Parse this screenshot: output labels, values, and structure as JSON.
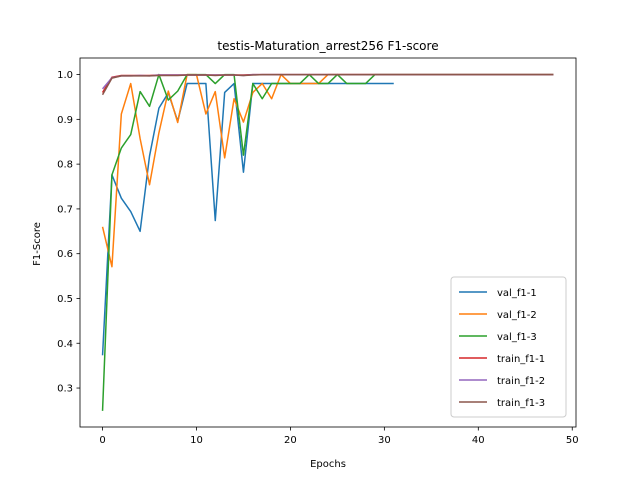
{
  "chart_data": {
    "type": "line",
    "title": "testis-Maturation_arrest256 F1-score",
    "xlabel": "Epochs",
    "ylabel": "F1-Score",
    "xlim": [
      -2.4,
      50.4
    ],
    "ylim": [
      0.213,
      1.037
    ],
    "xticks": [
      0,
      10,
      20,
      30,
      40,
      50
    ],
    "yticks": [
      0.3,
      0.4,
      0.5,
      0.6,
      0.7,
      0.8,
      0.9,
      1.0
    ],
    "ytick_labels": [
      "0.3",
      "0.4",
      "0.5",
      "0.6",
      "0.7",
      "0.8",
      "0.9",
      "1.0"
    ],
    "grid": false,
    "legend_position": "lower-right",
    "series": [
      {
        "name": "val_f1-1",
        "color": "#1f77b4",
        "x": [
          0,
          1,
          2,
          3,
          4,
          5,
          6,
          7,
          8,
          9,
          10,
          11,
          12,
          13,
          14,
          15,
          16,
          17,
          18,
          19,
          20,
          21,
          22,
          23,
          24,
          25,
          26,
          27,
          28,
          29,
          30,
          31
        ],
        "values": [
          0.373,
          0.776,
          0.724,
          0.694,
          0.65,
          0.818,
          0.925,
          0.959,
          0.896,
          0.98,
          0.98,
          0.98,
          0.674,
          0.96,
          0.98,
          0.782,
          0.98,
          0.98,
          0.98,
          0.98,
          0.98,
          0.98,
          0.98,
          0.98,
          0.98,
          0.98,
          0.98,
          0.98,
          0.98,
          0.98,
          0.98,
          0.98
        ]
      },
      {
        "name": "val_f1-2",
        "color": "#ff7f0e",
        "x": [
          0,
          1,
          2,
          3,
          4,
          5,
          6,
          7,
          8,
          9,
          10,
          11,
          12,
          13,
          14,
          15,
          16,
          17,
          18,
          19,
          20,
          21,
          22,
          23,
          24,
          25,
          26,
          27,
          28,
          29,
          30,
          31,
          32,
          33,
          34,
          35,
          36,
          37,
          38,
          39,
          40,
          41,
          42,
          43,
          44,
          45,
          46,
          47,
          48
        ],
        "values": [
          0.66,
          0.571,
          0.912,
          0.98,
          0.857,
          0.754,
          0.87,
          0.963,
          0.893,
          1.0,
          1.0,
          0.912,
          0.962,
          0.814,
          0.946,
          0.894,
          0.96,
          0.98,
          0.946,
          1.0,
          0.98,
          0.98,
          0.98,
          0.98,
          1.0,
          1.0,
          1.0,
          1.0,
          1.0,
          1.0,
          1.0,
          1.0,
          1.0,
          1.0,
          1.0,
          1.0,
          1.0,
          1.0,
          1.0,
          1.0,
          1.0,
          1.0,
          1.0,
          1.0,
          1.0,
          1.0,
          1.0,
          1.0,
          1.0
        ]
      },
      {
        "name": "val_f1-3",
        "color": "#2ca02c",
        "x": [
          0,
          1,
          2,
          3,
          4,
          5,
          6,
          7,
          8,
          9,
          10,
          11,
          12,
          13,
          14,
          15,
          16,
          17,
          18,
          19,
          20,
          21,
          22,
          23,
          24,
          25,
          26,
          27,
          28,
          29,
          30,
          31,
          32,
          33,
          34,
          35,
          36,
          37,
          38,
          39,
          40,
          41,
          42,
          43,
          44,
          45,
          46,
          47,
          48
        ],
        "values": [
          0.249,
          0.776,
          0.836,
          0.866,
          0.962,
          0.929,
          1.0,
          0.943,
          0.963,
          1.0,
          1.0,
          1.0,
          0.98,
          1.0,
          1.0,
          0.82,
          0.98,
          0.946,
          0.98,
          0.98,
          0.98,
          0.98,
          1.0,
          0.98,
          0.98,
          1.0,
          0.98,
          0.98,
          0.98,
          1.0,
          1.0,
          1.0,
          1.0,
          1.0,
          1.0,
          1.0,
          1.0,
          1.0,
          1.0,
          1.0,
          1.0,
          1.0,
          1.0,
          1.0,
          1.0,
          1.0,
          1.0,
          1.0,
          1.0
        ]
      },
      {
        "name": "train_f1-1",
        "color": "#d62728",
        "x": [
          0,
          1,
          2,
          3,
          4,
          5,
          6,
          7,
          8,
          9,
          10,
          11,
          12,
          13,
          14,
          15,
          16,
          17,
          18,
          19,
          20,
          21,
          22,
          23,
          24,
          25,
          26,
          27,
          28,
          29,
          30,
          31,
          32,
          33,
          34,
          35,
          36,
          37,
          38,
          39,
          40,
          41,
          42,
          43,
          44,
          45,
          46,
          47,
          48
        ],
        "values": [
          0.96,
          0.994,
          0.998,
          0.998,
          0.998,
          0.998,
          0.999,
          0.999,
          0.999,
          0.999,
          0.999,
          0.999,
          0.999,
          0.999,
          0.999,
          0.999,
          1.0,
          1.0,
          1.0,
          1.0,
          1.0,
          1.0,
          1.0,
          1.0,
          1.0,
          1.0,
          1.0,
          1.0,
          1.0,
          1.0,
          1.0,
          1.0,
          1.0,
          1.0,
          1.0,
          1.0,
          1.0,
          1.0,
          1.0,
          1.0,
          1.0,
          1.0,
          1.0,
          1.0,
          1.0,
          1.0,
          1.0,
          1.0,
          1.0
        ]
      },
      {
        "name": "train_f1-2",
        "color": "#9467bd",
        "x": [
          0,
          1,
          2,
          3,
          4,
          5,
          6,
          7,
          8,
          9,
          10,
          11,
          12,
          13,
          14,
          15,
          16,
          17,
          18,
          19,
          20,
          21,
          22,
          23,
          24,
          25,
          26,
          27,
          28,
          29,
          30,
          31,
          32,
          33,
          34,
          35,
          36,
          37,
          38,
          39,
          40,
          41,
          42,
          43,
          44,
          45,
          46,
          47,
          48
        ],
        "values": [
          0.968,
          0.993,
          0.997,
          0.997,
          0.998,
          0.997,
          0.999,
          0.999,
          0.999,
          0.999,
          0.999,
          0.999,
          0.999,
          0.999,
          0.999,
          0.998,
          1.0,
          1.0,
          1.0,
          1.0,
          1.0,
          1.0,
          1.0,
          1.0,
          1.0,
          1.0,
          1.0,
          1.0,
          1.0,
          1.0,
          1.0,
          1.0,
          1.0,
          1.0,
          1.0,
          1.0,
          1.0,
          1.0,
          1.0,
          1.0,
          1.0,
          1.0,
          1.0,
          1.0,
          1.0,
          1.0,
          1.0,
          1.0,
          1.0
        ]
      },
      {
        "name": "train_f1-3",
        "color": "#8c564b",
        "x": [
          0,
          1,
          2,
          3,
          4,
          5,
          6,
          7,
          8,
          9,
          10,
          11,
          12,
          13,
          14,
          15,
          16,
          17,
          18,
          19,
          20,
          21,
          22,
          23,
          24,
          25,
          26,
          27,
          28,
          29,
          30,
          31,
          32,
          33,
          34,
          35,
          36,
          37,
          38,
          39,
          40,
          41,
          42,
          43,
          44,
          45,
          46,
          47,
          48
        ],
        "values": [
          0.955,
          0.992,
          0.997,
          0.997,
          0.997,
          0.997,
          0.998,
          0.998,
          0.998,
          0.999,
          0.999,
          0.999,
          0.998,
          0.999,
          0.999,
          0.998,
          0.999,
          1.0,
          1.0,
          1.0,
          1.0,
          1.0,
          1.0,
          1.0,
          1.0,
          1.0,
          1.0,
          1.0,
          1.0,
          1.0,
          1.0,
          1.0,
          1.0,
          1.0,
          1.0,
          1.0,
          1.0,
          1.0,
          1.0,
          1.0,
          1.0,
          1.0,
          1.0,
          1.0,
          1.0,
          1.0,
          1.0,
          1.0,
          1.0
        ]
      }
    ]
  }
}
